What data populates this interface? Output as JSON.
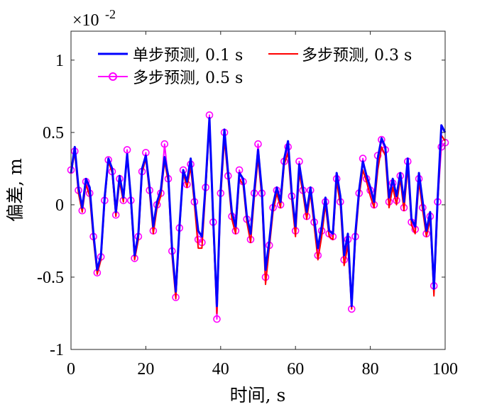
{
  "chart_data": {
    "type": "line",
    "xlabel": "时间, s",
    "ylabel": "偏差, m",
    "y_multiplier": {
      "base": "×10",
      "exponent": "-2"
    },
    "xlim": [
      0,
      100
    ],
    "ylim": [
      -1,
      1.2
    ],
    "xticks": [
      "0",
      "20",
      "40",
      "60",
      "80",
      "100"
    ],
    "yticks": [
      "-1",
      "-0.5",
      "0",
      "0.5",
      "1"
    ],
    "grid": false,
    "legend_position": "top",
    "series": [
      {
        "name": "单步预测, 0.1 s",
        "color": "#0000ff",
        "marker": "none",
        "points": [
          [
            0,
            0.22
          ],
          [
            1,
            0.4
          ],
          [
            2,
            0.12
          ],
          [
            3,
            -0.02
          ],
          [
            4,
            0.18
          ],
          [
            5,
            0.12
          ],
          [
            6,
            -0.2
          ],
          [
            7,
            -0.45
          ],
          [
            8,
            -0.35
          ],
          [
            9,
            0.05
          ],
          [
            10,
            0.32
          ],
          [
            11,
            0.25
          ],
          [
            12,
            -0.05
          ],
          [
            13,
            0.2
          ],
          [
            14,
            0.05
          ],
          [
            15,
            0.35
          ],
          [
            16,
            0.05
          ],
          [
            17,
            -0.35
          ],
          [
            18,
            -0.2
          ],
          [
            19,
            0.25
          ],
          [
            20,
            0.34
          ],
          [
            21,
            0.12
          ],
          [
            22,
            -0.15
          ],
          [
            23,
            0.02
          ],
          [
            24,
            0.1
          ],
          [
            25,
            0.33
          ],
          [
            26,
            0.2
          ],
          [
            27,
            -0.3
          ],
          [
            28,
            -0.6
          ],
          [
            29,
            -0.15
          ],
          [
            30,
            0.24
          ],
          [
            31,
            0.16
          ],
          [
            32,
            0.32
          ],
          [
            33,
            0.05
          ],
          [
            34,
            -0.18
          ],
          [
            35,
            -0.22
          ],
          [
            36,
            0.15
          ],
          [
            37,
            0.6
          ],
          [
            38,
            -0.1
          ],
          [
            39,
            -0.7
          ],
          [
            40,
            0.1
          ],
          [
            41,
            0.52
          ],
          [
            42,
            0.22
          ],
          [
            43,
            -0.05
          ],
          [
            44,
            -0.15
          ],
          [
            45,
            0.22
          ],
          [
            46,
            0.18
          ],
          [
            47,
            -0.08
          ],
          [
            48,
            -0.2
          ],
          [
            49,
            0.1
          ],
          [
            50,
            0.38
          ],
          [
            51,
            0.1
          ],
          [
            52,
            -0.45
          ],
          [
            53,
            -0.25
          ],
          [
            54,
            0.0
          ],
          [
            55,
            0.12
          ],
          [
            56,
            0.02
          ],
          [
            57,
            0.32
          ],
          [
            58,
            0.44
          ],
          [
            59,
            0.08
          ],
          [
            60,
            -0.15
          ],
          [
            61,
            0.28
          ],
          [
            62,
            0.12
          ],
          [
            63,
            -0.05
          ],
          [
            64,
            0.12
          ],
          [
            65,
            -0.1
          ],
          [
            66,
            -0.3
          ],
          [
            67,
            -0.15
          ],
          [
            68,
            0.05
          ],
          [
            69,
            -0.18
          ],
          [
            70,
            -0.2
          ],
          [
            71,
            0.22
          ],
          [
            72,
            0.06
          ],
          [
            73,
            -0.35
          ],
          [
            74,
            -0.2
          ],
          [
            75,
            -0.7
          ],
          [
            76,
            -0.2
          ],
          [
            77,
            0.1
          ],
          [
            78,
            0.3
          ],
          [
            79,
            0.2
          ],
          [
            80,
            0.12
          ],
          [
            81,
            0.02
          ],
          [
            82,
            0.32
          ],
          [
            83,
            0.46
          ],
          [
            84,
            0.4
          ],
          [
            85,
            0.05
          ],
          [
            86,
            0.18
          ],
          [
            87,
            0.06
          ],
          [
            88,
            0.22
          ],
          [
            89,
            0.02
          ],
          [
            90,
            0.32
          ],
          [
            91,
            -0.1
          ],
          [
            92,
            -0.15
          ],
          [
            93,
            0.22
          ],
          [
            94,
            0.02
          ],
          [
            95,
            -0.18
          ],
          [
            96,
            -0.05
          ],
          [
            97,
            -0.58
          ],
          [
            98,
            0.05
          ],
          [
            99,
            0.55
          ],
          [
            100,
            0.5
          ]
        ]
      },
      {
        "name": "多步预测, 0.3 s",
        "color": "#ff0000",
        "marker": "none",
        "points": [
          [
            0,
            0.22
          ],
          [
            1,
            0.36
          ],
          [
            2,
            0.08
          ],
          [
            3,
            -0.05
          ],
          [
            4,
            0.14
          ],
          [
            5,
            0.06
          ],
          [
            6,
            -0.24
          ],
          [
            7,
            -0.48
          ],
          [
            8,
            -0.38
          ],
          [
            9,
            0.02
          ],
          [
            10,
            0.3
          ],
          [
            11,
            0.22
          ],
          [
            12,
            -0.08
          ],
          [
            13,
            0.16
          ],
          [
            14,
            0.02
          ],
          [
            15,
            0.34
          ],
          [
            16,
            0.02
          ],
          [
            17,
            -0.38
          ],
          [
            18,
            -0.24
          ],
          [
            19,
            0.22
          ],
          [
            20,
            0.32
          ],
          [
            21,
            0.08
          ],
          [
            22,
            -0.2
          ],
          [
            23,
            -0.02
          ],
          [
            24,
            0.06
          ],
          [
            25,
            0.3
          ],
          [
            26,
            0.16
          ],
          [
            27,
            -0.35
          ],
          [
            28,
            -0.65
          ],
          [
            29,
            -0.18
          ],
          [
            30,
            0.22
          ],
          [
            31,
            0.12
          ],
          [
            32,
            0.26
          ],
          [
            33,
            0.0
          ],
          [
            34,
            -0.3
          ],
          [
            35,
            -0.3
          ],
          [
            36,
            0.1
          ],
          [
            37,
            0.55
          ],
          [
            38,
            -0.15
          ],
          [
            39,
            -0.75
          ],
          [
            40,
            0.05
          ],
          [
            41,
            0.45
          ],
          [
            42,
            0.18
          ],
          [
            43,
            -0.1
          ],
          [
            44,
            -0.2
          ],
          [
            45,
            0.18
          ],
          [
            46,
            0.14
          ],
          [
            47,
            -0.12
          ],
          [
            48,
            -0.26
          ],
          [
            49,
            0.05
          ],
          [
            50,
            0.32
          ],
          [
            51,
            0.05
          ],
          [
            52,
            -0.55
          ],
          [
            53,
            -0.3
          ],
          [
            54,
            -0.05
          ],
          [
            55,
            0.08
          ],
          [
            56,
            -0.02
          ],
          [
            57,
            0.28
          ],
          [
            58,
            0.36
          ],
          [
            59,
            0.04
          ],
          [
            60,
            -0.22
          ],
          [
            61,
            0.22
          ],
          [
            62,
            0.08
          ],
          [
            63,
            -0.1
          ],
          [
            64,
            0.08
          ],
          [
            65,
            -0.15
          ],
          [
            66,
            -0.38
          ],
          [
            67,
            -0.22
          ],
          [
            68,
            0.0
          ],
          [
            69,
            -0.22
          ],
          [
            70,
            -0.24
          ],
          [
            71,
            0.16
          ],
          [
            72,
            0.0
          ],
          [
            73,
            -0.42
          ],
          [
            74,
            -0.28
          ],
          [
            75,
            -0.72
          ],
          [
            76,
            -0.25
          ],
          [
            77,
            0.06
          ],
          [
            78,
            0.24
          ],
          [
            79,
            0.16
          ],
          [
            80,
            0.06
          ],
          [
            81,
            -0.02
          ],
          [
            82,
            0.24
          ],
          [
            83,
            0.4
          ],
          [
            84,
            0.34
          ],
          [
            85,
            -0.02
          ],
          [
            86,
            0.12
          ],
          [
            87,
            0.0
          ],
          [
            88,
            0.18
          ],
          [
            89,
            -0.04
          ],
          [
            90,
            0.26
          ],
          [
            91,
            -0.14
          ],
          [
            92,
            -0.2
          ],
          [
            93,
            0.16
          ],
          [
            94,
            -0.04
          ],
          [
            95,
            -0.22
          ],
          [
            96,
            -0.1
          ],
          [
            97,
            -0.63
          ],
          [
            98,
            0.0
          ],
          [
            99,
            0.48
          ],
          [
            100,
            0.44
          ]
        ]
      },
      {
        "name": "多步预测, 0.5 s",
        "color": "#ff00ff",
        "marker": "circle",
        "points": [
          [
            0,
            0.24
          ],
          [
            1,
            0.37
          ],
          [
            2,
            0.1
          ],
          [
            3,
            -0.04
          ],
          [
            4,
            0.16
          ],
          [
            5,
            0.08
          ],
          [
            6,
            -0.22
          ],
          [
            7,
            -0.47
          ],
          [
            8,
            -0.36
          ],
          [
            9,
            0.03
          ],
          [
            10,
            0.31
          ],
          [
            11,
            0.23
          ],
          [
            12,
            -0.07
          ],
          [
            13,
            0.18
          ],
          [
            14,
            0.03
          ],
          [
            15,
            0.38
          ],
          [
            16,
            0.03
          ],
          [
            17,
            -0.37
          ],
          [
            18,
            -0.22
          ],
          [
            19,
            0.23
          ],
          [
            20,
            0.36
          ],
          [
            21,
            0.1
          ],
          [
            22,
            -0.18
          ],
          [
            23,
            0.0
          ],
          [
            24,
            0.08
          ],
          [
            25,
            0.42
          ],
          [
            26,
            0.18
          ],
          [
            27,
            -0.32
          ],
          [
            28,
            -0.64
          ],
          [
            29,
            -0.16
          ],
          [
            30,
            0.24
          ],
          [
            31,
            0.14
          ],
          [
            32,
            0.28
          ],
          [
            33,
            0.02
          ],
          [
            34,
            -0.24
          ],
          [
            35,
            -0.26
          ],
          [
            36,
            0.12
          ],
          [
            37,
            0.62
          ],
          [
            38,
            -0.12
          ],
          [
            39,
            -0.79
          ],
          [
            40,
            0.08
          ],
          [
            41,
            0.5
          ],
          [
            42,
            0.2
          ],
          [
            43,
            -0.08
          ],
          [
            44,
            -0.18
          ],
          [
            45,
            0.24
          ],
          [
            46,
            0.16
          ],
          [
            47,
            -0.1
          ],
          [
            48,
            -0.24
          ],
          [
            49,
            0.08
          ],
          [
            50,
            0.42
          ],
          [
            51,
            0.08
          ],
          [
            52,
            -0.5
          ],
          [
            53,
            -0.28
          ],
          [
            54,
            -0.02
          ],
          [
            55,
            0.1
          ],
          [
            56,
            0.0
          ],
          [
            57,
            0.3
          ],
          [
            58,
            0.4
          ],
          [
            59,
            0.06
          ],
          [
            60,
            -0.18
          ],
          [
            61,
            0.3
          ],
          [
            62,
            0.1
          ],
          [
            63,
            -0.08
          ],
          [
            64,
            0.1
          ],
          [
            65,
            -0.12
          ],
          [
            66,
            -0.35
          ],
          [
            67,
            -0.18
          ],
          [
            68,
            0.02
          ],
          [
            69,
            -0.2
          ],
          [
            70,
            -0.22
          ],
          [
            71,
            0.18
          ],
          [
            72,
            0.02
          ],
          [
            73,
            -0.38
          ],
          [
            74,
            -0.24
          ],
          [
            75,
            -0.72
          ],
          [
            76,
            -0.22
          ],
          [
            77,
            0.08
          ],
          [
            78,
            0.32
          ],
          [
            79,
            0.18
          ],
          [
            80,
            0.1
          ],
          [
            81,
            0.0
          ],
          [
            82,
            0.34
          ],
          [
            83,
            0.45
          ],
          [
            84,
            0.38
          ],
          [
            85,
            0.02
          ],
          [
            86,
            0.15
          ],
          [
            87,
            0.03
          ],
          [
            88,
            0.2
          ],
          [
            89,
            -0.02
          ],
          [
            90,
            0.3
          ],
          [
            91,
            -0.12
          ],
          [
            92,
            -0.17
          ],
          [
            93,
            0.18
          ],
          [
            94,
            -0.02
          ],
          [
            95,
            -0.2
          ],
          [
            96,
            -0.08
          ],
          [
            97,
            -0.56
          ],
          [
            98,
            0.02
          ],
          [
            99,
            0.4
          ],
          [
            100,
            0.43
          ]
        ]
      }
    ]
  }
}
